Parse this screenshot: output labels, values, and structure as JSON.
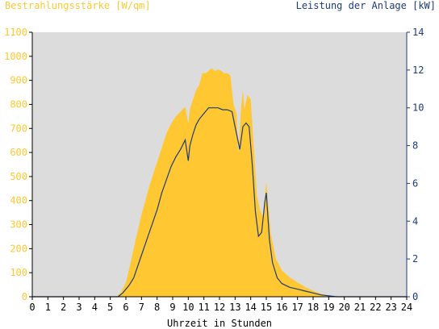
{
  "chart_data": {
    "type": "area",
    "title_left": "Bestrahlungsstärke [W/qm]",
    "title_right": "Leistung der Anlage [kW]",
    "xlabel": "Uhrzeit in Stunden",
    "xlim": [
      0,
      24
    ],
    "y_left_lim": [
      0,
      1100
    ],
    "y_right_lim": [
      0,
      14
    ],
    "x_ticks": [
      "0",
      "1",
      "2",
      "3",
      "4",
      "5",
      "6",
      "7",
      "8",
      "9",
      "10",
      "11",
      "12",
      "13",
      "14",
      "15",
      "16",
      "17",
      "18",
      "19",
      "20",
      "21",
      "22",
      "23",
      "24"
    ],
    "y_left_ticks": [
      "0",
      "100",
      "200",
      "300",
      "400",
      "500",
      "600",
      "700",
      "800",
      "900",
      "1000",
      "1100"
    ],
    "y_right_ticks": [
      "0",
      "2",
      "4",
      "6",
      "8",
      "10",
      "12",
      "14"
    ],
    "grid": false,
    "colors": {
      "irradiance": "#ffc832",
      "power": "#1e3c78",
      "plot_bg": "#dcdcdc"
    },
    "series": [
      {
        "axis": "left",
        "kind": "area",
        "x": [
          0,
          5.4,
          5.7,
          6,
          6.3,
          6.6,
          7,
          7.5,
          8,
          8.3,
          8.6,
          8.9,
          9.2,
          9.5,
          9.8,
          10,
          10.1,
          10.3,
          10.5,
          10.7,
          10.9,
          11.1,
          11.3,
          11.5,
          11.7,
          11.9,
          12.1,
          12.3,
          12.5,
          12.7,
          12.9,
          13.1,
          13.2,
          13.4,
          13.5,
          13.6,
          13.8,
          14,
          14.2,
          14.4,
          14.6,
          14.8,
          15,
          15.1,
          15.3,
          15.6,
          16,
          16.5,
          17,
          17.5,
          18,
          18.5,
          19,
          19.5,
          24
        ],
        "values": [
          0,
          0,
          20,
          60,
          140,
          230,
          340,
          460,
          560,
          620,
          680,
          720,
          750,
          770,
          790,
          720,
          780,
          820,
          860,
          880,
          930,
          930,
          940,
          950,
          940,
          945,
          940,
          930,
          930,
          920,
          800,
          760,
          600,
          800,
          860,
          780,
          840,
          820,
          620,
          420,
          360,
          330,
          480,
          400,
          260,
          160,
          110,
          80,
          60,
          40,
          25,
          12,
          4,
          0,
          0
        ]
      },
      {
        "axis": "right",
        "kind": "line",
        "x": [
          0,
          5.5,
          5.8,
          6.2,
          6.5,
          7,
          7.5,
          8,
          8.3,
          8.6,
          8.9,
          9.2,
          9.5,
          9.8,
          10,
          10.1,
          10.3,
          10.5,
          10.7,
          10.9,
          11.1,
          11.3,
          11.6,
          11.9,
          12.2,
          12.5,
          12.8,
          13,
          13.2,
          13.3,
          13.5,
          13.7,
          13.9,
          14.1,
          14.3,
          14.5,
          14.7,
          14.9,
          15,
          15.2,
          15.4,
          15.7,
          16,
          16.5,
          17,
          17.5,
          18,
          18.5,
          19,
          19.5,
          24
        ],
        "values": [
          0,
          0,
          0.2,
          0.6,
          1.0,
          2.2,
          3.4,
          4.6,
          5.5,
          6.2,
          6.9,
          7.4,
          7.8,
          8.3,
          7.2,
          8.0,
          8.6,
          9.1,
          9.4,
          9.6,
          9.8,
          10.0,
          10.0,
          10.0,
          9.9,
          9.9,
          9.8,
          9.0,
          8.2,
          7.8,
          9.0,
          9.2,
          9.0,
          7.0,
          4.5,
          3.2,
          3.4,
          5.0,
          5.5,
          3.0,
          1.8,
          1.0,
          0.7,
          0.5,
          0.4,
          0.3,
          0.2,
          0.1,
          0.05,
          0,
          0
        ]
      }
    ]
  }
}
